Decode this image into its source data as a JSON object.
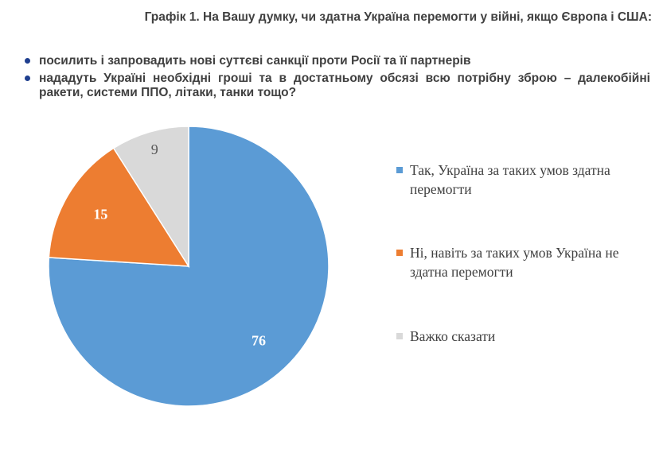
{
  "title": "Графік 1. На Вашу думку, чи здатна Україна перемогти у війні, якщо Європа і США:",
  "bullets": [
    "посилить і запровадить нові суттєві санкції проти Росії та її партнерів",
    "нададуть Україні необхідні гроші та в достатньому обсязі всю потрібну зброю – далекобійні ракети, системи ППО, літаки, танки тощо?"
  ],
  "colors": {
    "bullet": "#1f3f8f"
  },
  "chart_data": {
    "type": "pie",
    "categories": [
      "Так, Україна за таких умов здатна перемогти",
      "Ні, навіть за таких умов Україна не здатна перемогти",
      "Важко сказати"
    ],
    "values": [
      76,
      15,
      9
    ],
    "data_labels": [
      "76",
      "15",
      "9"
    ],
    "colors": [
      "#5b9bd5",
      "#ed7d31",
      "#d9d9d9"
    ],
    "label_colors": [
      "#ffffff",
      "#ffffff",
      "#595959"
    ],
    "start": "12 o'clock",
    "direction": "clockwise",
    "legend_position": "right"
  }
}
